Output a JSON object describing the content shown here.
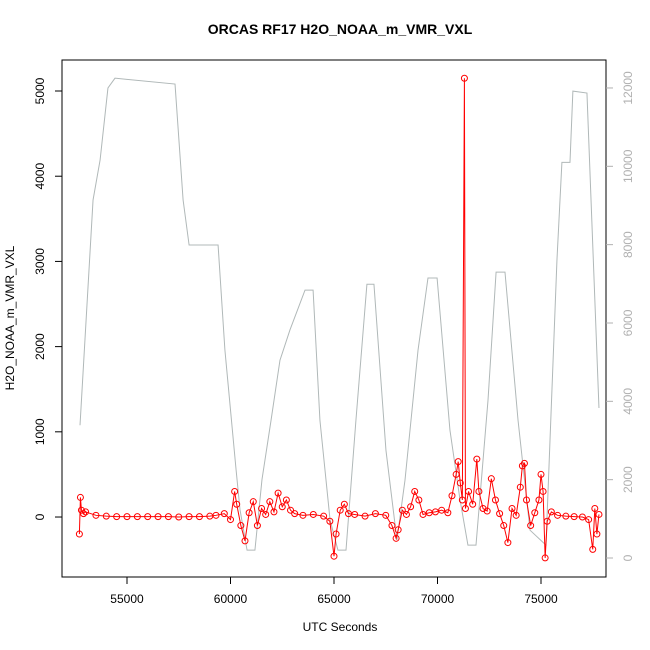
{
  "chart_data": {
    "type": "line",
    "title": "ORCAS RF17 H2O_NOAA_m_VMR_VXL",
    "xlabel": "UTC Seconds",
    "ylabel": "H2O_NOAA_m_VMR_VXL",
    "xlim": [
      51860,
      78140
    ],
    "ylim": [
      -704,
      5364
    ],
    "y2lim": [
      -485,
      12714
    ],
    "xticks": [
      55000,
      60000,
      65000,
      70000,
      75000
    ],
    "yticks": [
      0,
      1000,
      2000,
      3000,
      4000,
      5000
    ],
    "y2ticks": [
      0,
      2000,
      4000,
      6000,
      8000,
      10000,
      12000
    ],
    "y2color": "#b0b0b0",
    "series": [
      {
        "color": "#b0b8b8",
        "axis": "y2",
        "markers": false,
        "x": [
          52730,
          53360,
          53700,
          54080,
          54420,
          57320,
          57710,
          58000,
          59400,
          59730,
          60270,
          60460,
          60800,
          61180,
          61520,
          61960,
          62390,
          62870,
          63600,
          63990,
          64320,
          64810,
          65190,
          65580,
          66060,
          66590,
          66930,
          67510,
          68040,
          68430,
          69060,
          69540,
          69980,
          70600,
          71090,
          71470,
          71860,
          72440,
          72830,
          73260,
          73890,
          74470,
          75240,
          75770,
          76010,
          76400,
          76540,
          77220,
          77800
        ],
        "values": [
          3390,
          9140,
          10160,
          12000,
          12250,
          12100,
          9140,
          7990,
          7990,
          5310,
          2250,
          1230,
          200,
          200,
          2000,
          3520,
          5050,
          5820,
          6840,
          6840,
          3520,
          970,
          200,
          200,
          3520,
          6990,
          6990,
          2750,
          460,
          1990,
          5310,
          7150,
          7150,
          3270,
          1480,
          330,
          330,
          4030,
          7300,
          7300,
          3520,
          710,
          330,
          7600,
          10100,
          10100,
          11920,
          11870,
          3830
        ]
      },
      {
        "color": "#ff0000",
        "markers": true,
        "x": [
          52700,
          52750,
          52800,
          52900,
          53000,
          53500,
          54000,
          54500,
          55000,
          55500,
          56000,
          56500,
          57000,
          57500,
          58000,
          58500,
          59000,
          59300,
          59700,
          60000,
          60200,
          60300,
          60500,
          60700,
          60900,
          61100,
          61300,
          61500,
          61700,
          61900,
          62100,
          62300,
          62500,
          62700,
          62900,
          63100,
          63500,
          64000,
          64500,
          64800,
          65000,
          65100,
          65300,
          65500,
          65700,
          66000,
          66500,
          67000,
          67500,
          67800,
          68000,
          68100,
          68300,
          68500,
          68700,
          68900,
          69100,
          69300,
          69600,
          69900,
          70200,
          70500,
          70700,
          70900,
          71000,
          71100,
          71200,
          71300,
          71350,
          71500,
          71700,
          71900,
          72000,
          72200,
          72400,
          72600,
          72800,
          73000,
          73200,
          73400,
          73600,
          73800,
          74000,
          74100,
          74200,
          74300,
          74500,
          74700,
          74900,
          75000,
          75100,
          75200,
          75300,
          75500,
          75800,
          76200,
          76600,
          77000,
          77300,
          77500,
          77600,
          77700,
          77800
        ],
        "values": [
          -200,
          230,
          80,
          40,
          60,
          20,
          10,
          5,
          5,
          5,
          5,
          5,
          5,
          0,
          5,
          5,
          10,
          20,
          40,
          -30,
          300,
          150,
          -100,
          -280,
          50,
          180,
          -100,
          100,
          30,
          180,
          60,
          280,
          120,
          200,
          80,
          40,
          20,
          30,
          10,
          -50,
          -460,
          -200,
          80,
          150,
          40,
          30,
          10,
          40,
          20,
          -100,
          -250,
          -150,
          80,
          30,
          120,
          300,
          200,
          30,
          50,
          60,
          80,
          50,
          250,
          500,
          650,
          400,
          200,
          5150,
          100,
          300,
          150,
          680,
          300,
          100,
          70,
          450,
          200,
          40,
          -100,
          -300,
          100,
          20,
          350,
          600,
          630,
          200,
          -100,
          50,
          200,
          500,
          300,
          -480,
          -50,
          60,
          20,
          10,
          5,
          0,
          -30,
          -380,
          100,
          -200,
          30
        ]
      }
    ]
  }
}
